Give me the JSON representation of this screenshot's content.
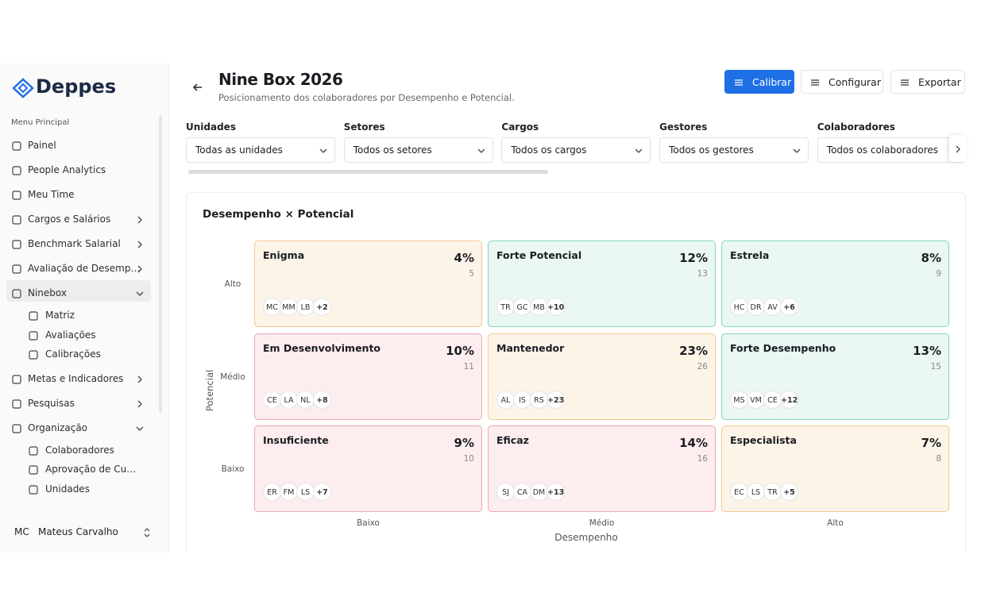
{
  "brand": "Deppes",
  "sidebar": {
    "section": "Menu Principal",
    "items": [
      {
        "label": "Painel"
      },
      {
        "label": "People Analytics"
      },
      {
        "label": "Meu Time"
      },
      {
        "label": "Cargos e Salários",
        "chevron": "right"
      },
      {
        "label": "Benchmark Salarial",
        "chevron": "right"
      },
      {
        "label": "Avaliação de Desemp…",
        "chevron": "right"
      },
      {
        "label": "Ninebox",
        "chevron": "down",
        "active": true,
        "children": [
          "Matriz",
          "Avaliações",
          "Calibrações"
        ]
      },
      {
        "label": "Metas e Indicadores",
        "chevron": "right"
      },
      {
        "label": "Pesquisas",
        "chevron": "right"
      },
      {
        "label": "Organização",
        "chevron": "down",
        "children": [
          "Colaboradores",
          "Aprovação de Cu…",
          "Unidades"
        ]
      }
    ],
    "user": {
      "initials": "MC",
      "name": "Mateus Carvalho"
    }
  },
  "header": {
    "title": "Nine Box 2026",
    "subtitle": "Posicionamento dos colaboradores por Desempenho e Potencial.",
    "actions": [
      "Calibrar",
      "Configurar",
      "Exportar"
    ]
  },
  "filters": [
    {
      "label": "Unidades",
      "value": "Todas as unidades"
    },
    {
      "label": "Setores",
      "value": "Todos os setores"
    },
    {
      "label": "Cargos",
      "value": "Todos os cargos"
    },
    {
      "label": "Gestores",
      "value": "Todos os gestores"
    },
    {
      "label": "Colaboradores",
      "value": "Todos os colaboradores"
    }
  ],
  "matrix": {
    "title": "Desempenho × Potencial",
    "y_axis": "Potencial",
    "x_axis": "Desempenho",
    "rows": [
      "Alto",
      "Médio",
      "Baixo"
    ],
    "cols": [
      "Baixo",
      "Médio",
      "Alto"
    ],
    "boxes": [
      {
        "name": "Enigma",
        "percent": "4%",
        "count": 5,
        "avatars": [
          "MC",
          "MM",
          "LB"
        ],
        "more": "+2",
        "color": "orange"
      },
      {
        "name": "Forte Potencial",
        "percent": "12%",
        "count": 13,
        "avatars": [
          "TR",
          "GC",
          "MB"
        ],
        "more": "+10",
        "color": "green"
      },
      {
        "name": "Estrela",
        "percent": "8%",
        "count": 9,
        "avatars": [
          "HC",
          "DR",
          "AV"
        ],
        "more": "+6",
        "color": "green"
      },
      {
        "name": "Em Desenvolvimento",
        "percent": "10%",
        "count": 11,
        "avatars": [
          "CE",
          "LA",
          "NL"
        ],
        "more": "+8",
        "color": "red"
      },
      {
        "name": "Mantenedor",
        "percent": "23%",
        "count": 26,
        "avatars": [
          "AL",
          "IS",
          "RS"
        ],
        "more": "+23",
        "color": "orange"
      },
      {
        "name": "Forte Desempenho",
        "percent": "13%",
        "count": 15,
        "avatars": [
          "MS",
          "VM",
          "CE"
        ],
        "more": "+12",
        "color": "green"
      },
      {
        "name": "Insuficiente",
        "percent": "9%",
        "count": 10,
        "avatars": [
          "ER",
          "FM",
          "LS"
        ],
        "more": "+7",
        "color": "red"
      },
      {
        "name": "Eficaz",
        "percent": "14%",
        "count": 16,
        "avatars": [
          "SJ",
          "CA",
          "DM"
        ],
        "more": "+13",
        "color": "red"
      },
      {
        "name": "Especialista",
        "percent": "7%",
        "count": 8,
        "avatars": [
          "EC",
          "LS",
          "TR"
        ],
        "more": "+5",
        "color": "orange"
      }
    ]
  }
}
